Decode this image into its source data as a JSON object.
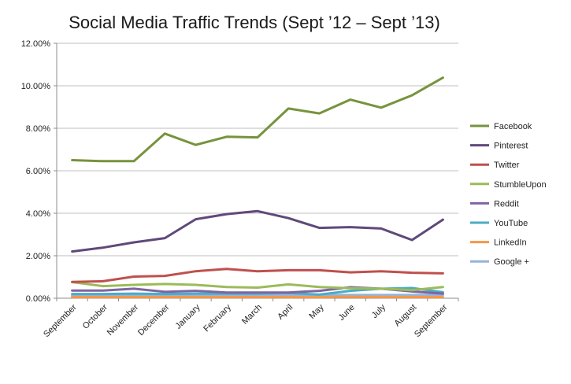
{
  "chart_data": {
    "type": "line",
    "title": "Social Media Traffic Trends (Sept ’12 – Sept ’13)",
    "xlabel": "",
    "ylabel": "",
    "categories": [
      "September",
      "October",
      "November",
      "December",
      "January",
      "February",
      "March",
      "April",
      "May",
      "June",
      "July",
      "August",
      "September"
    ],
    "y_ticks": [
      "0.00%",
      "2.00%",
      "4.00%",
      "6.00%",
      "8.00%",
      "10.00%",
      "12.00%"
    ],
    "ylim": [
      0,
      12
    ],
    "grid": true,
    "legend_position": "right",
    "series": [
      {
        "name": "Facebook",
        "color": "#77933c",
        "values": [
          6.5,
          6.45,
          6.45,
          7.75,
          7.22,
          7.6,
          7.57,
          8.93,
          8.7,
          9.35,
          8.97,
          9.55,
          10.38
        ]
      },
      {
        "name": "Pinterest",
        "color": "#5f497a",
        "values": [
          2.2,
          2.38,
          2.63,
          2.83,
          3.72,
          3.96,
          4.1,
          3.77,
          3.31,
          3.35,
          3.28,
          2.74,
          3.7
        ]
      },
      {
        "name": "Twitter",
        "color": "#c0504d",
        "values": [
          0.77,
          0.8,
          1.02,
          1.05,
          1.27,
          1.38,
          1.27,
          1.32,
          1.32,
          1.22,
          1.27,
          1.2,
          1.17
        ]
      },
      {
        "name": "StumbleUpon",
        "color": "#9bbb59",
        "values": [
          0.76,
          0.57,
          0.63,
          0.67,
          0.63,
          0.53,
          0.5,
          0.65,
          0.53,
          0.47,
          0.45,
          0.38,
          0.53
        ]
      },
      {
        "name": "Reddit",
        "color": "#8064a2",
        "values": [
          0.36,
          0.36,
          0.45,
          0.3,
          0.35,
          0.27,
          0.27,
          0.27,
          0.35,
          0.52,
          0.45,
          0.32,
          0.22
        ]
      },
      {
        "name": "YouTube",
        "color": "#4bacc6",
        "values": [
          0.2,
          0.2,
          0.22,
          0.2,
          0.22,
          0.22,
          0.22,
          0.25,
          0.17,
          0.35,
          0.45,
          0.48,
          0.28
        ]
      },
      {
        "name": "LinkedIn",
        "color": "#f79646",
        "values": [
          0.05,
          0.05,
          0.05,
          0.05,
          0.05,
          0.05,
          0.05,
          0.05,
          0.05,
          0.07,
          0.05,
          0.05,
          0.05
        ]
      },
      {
        "name": "Google +",
        "color": "#95b3d7",
        "values": [
          0.12,
          0.12,
          0.13,
          0.12,
          0.13,
          0.13,
          0.13,
          0.15,
          0.15,
          0.15,
          0.15,
          0.15,
          0.15
        ]
      }
    ]
  }
}
